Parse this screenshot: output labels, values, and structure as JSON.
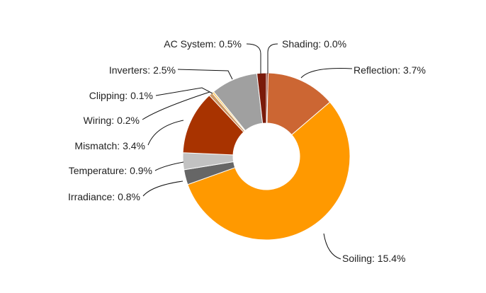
{
  "chart_data": {
    "type": "pie",
    "variant": "donut",
    "title": "",
    "legend": "none",
    "slices": [
      {
        "label": "Shading",
        "value": 0.0,
        "display": "Shading: 0.0%",
        "color": "#7a1a0a"
      },
      {
        "label": "Reflection",
        "value": 3.7,
        "display": "Reflection: 3.7%",
        "color": "#cc6633"
      },
      {
        "label": "Soiling",
        "value": 15.4,
        "display": "Soiling: 15.4%",
        "color": "#ff9900"
      },
      {
        "label": "Irradiance",
        "value": 0.8,
        "display": "Irradiance: 0.8%",
        "color": "#666666"
      },
      {
        "label": "Temperature",
        "value": 0.9,
        "display": "Temperature: 0.9%",
        "color": "#c2c2c2"
      },
      {
        "label": "Mismatch",
        "value": 3.4,
        "display": "Mismatch: 3.4%",
        "color": "#a83300"
      },
      {
        "label": "Wiring",
        "value": 0.2,
        "display": "Wiring: 0.2%",
        "color": "#cc9966"
      },
      {
        "label": "Clipping",
        "value": 0.1,
        "display": "Clipping: 0.1%",
        "color": "#ffcc66"
      },
      {
        "label": "Inverters",
        "value": 2.5,
        "display": "Inverters: 2.5%",
        "color": "#a0a0a0"
      },
      {
        "label": "AC System",
        "value": 0.5,
        "display": "AC System: 0.5%",
        "color": "#7a1a0a"
      }
    ]
  }
}
